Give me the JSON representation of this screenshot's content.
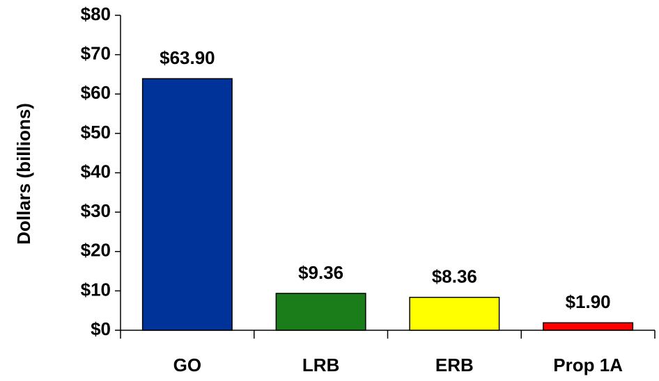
{
  "chart_data": {
    "type": "bar",
    "y_label": "Dollars (billions)",
    "categories": [
      "GO",
      "LRB",
      "ERB",
      "Prop 1A"
    ],
    "values": [
      63.9,
      9.36,
      8.36,
      1.9
    ],
    "value_labels": [
      "$63.90",
      "$9.36",
      "$8.36",
      "$1.90"
    ],
    "colors": [
      "#003399",
      "#1a7d1a",
      "#ffff00",
      "#ff0000"
    ],
    "ylim": [
      0,
      80
    ],
    "yticks": [
      {
        "value": 0,
        "label": "$0"
      },
      {
        "value": 10,
        "label": "$10"
      },
      {
        "value": 20,
        "label": "$20"
      },
      {
        "value": 30,
        "label": "$30"
      },
      {
        "value": 40,
        "label": "$40"
      },
      {
        "value": 50,
        "label": "$50"
      },
      {
        "value": 60,
        "label": "$60"
      },
      {
        "value": 70,
        "label": "$70"
      },
      {
        "value": 80,
        "label": "$80"
      }
    ],
    "grid": false
  }
}
